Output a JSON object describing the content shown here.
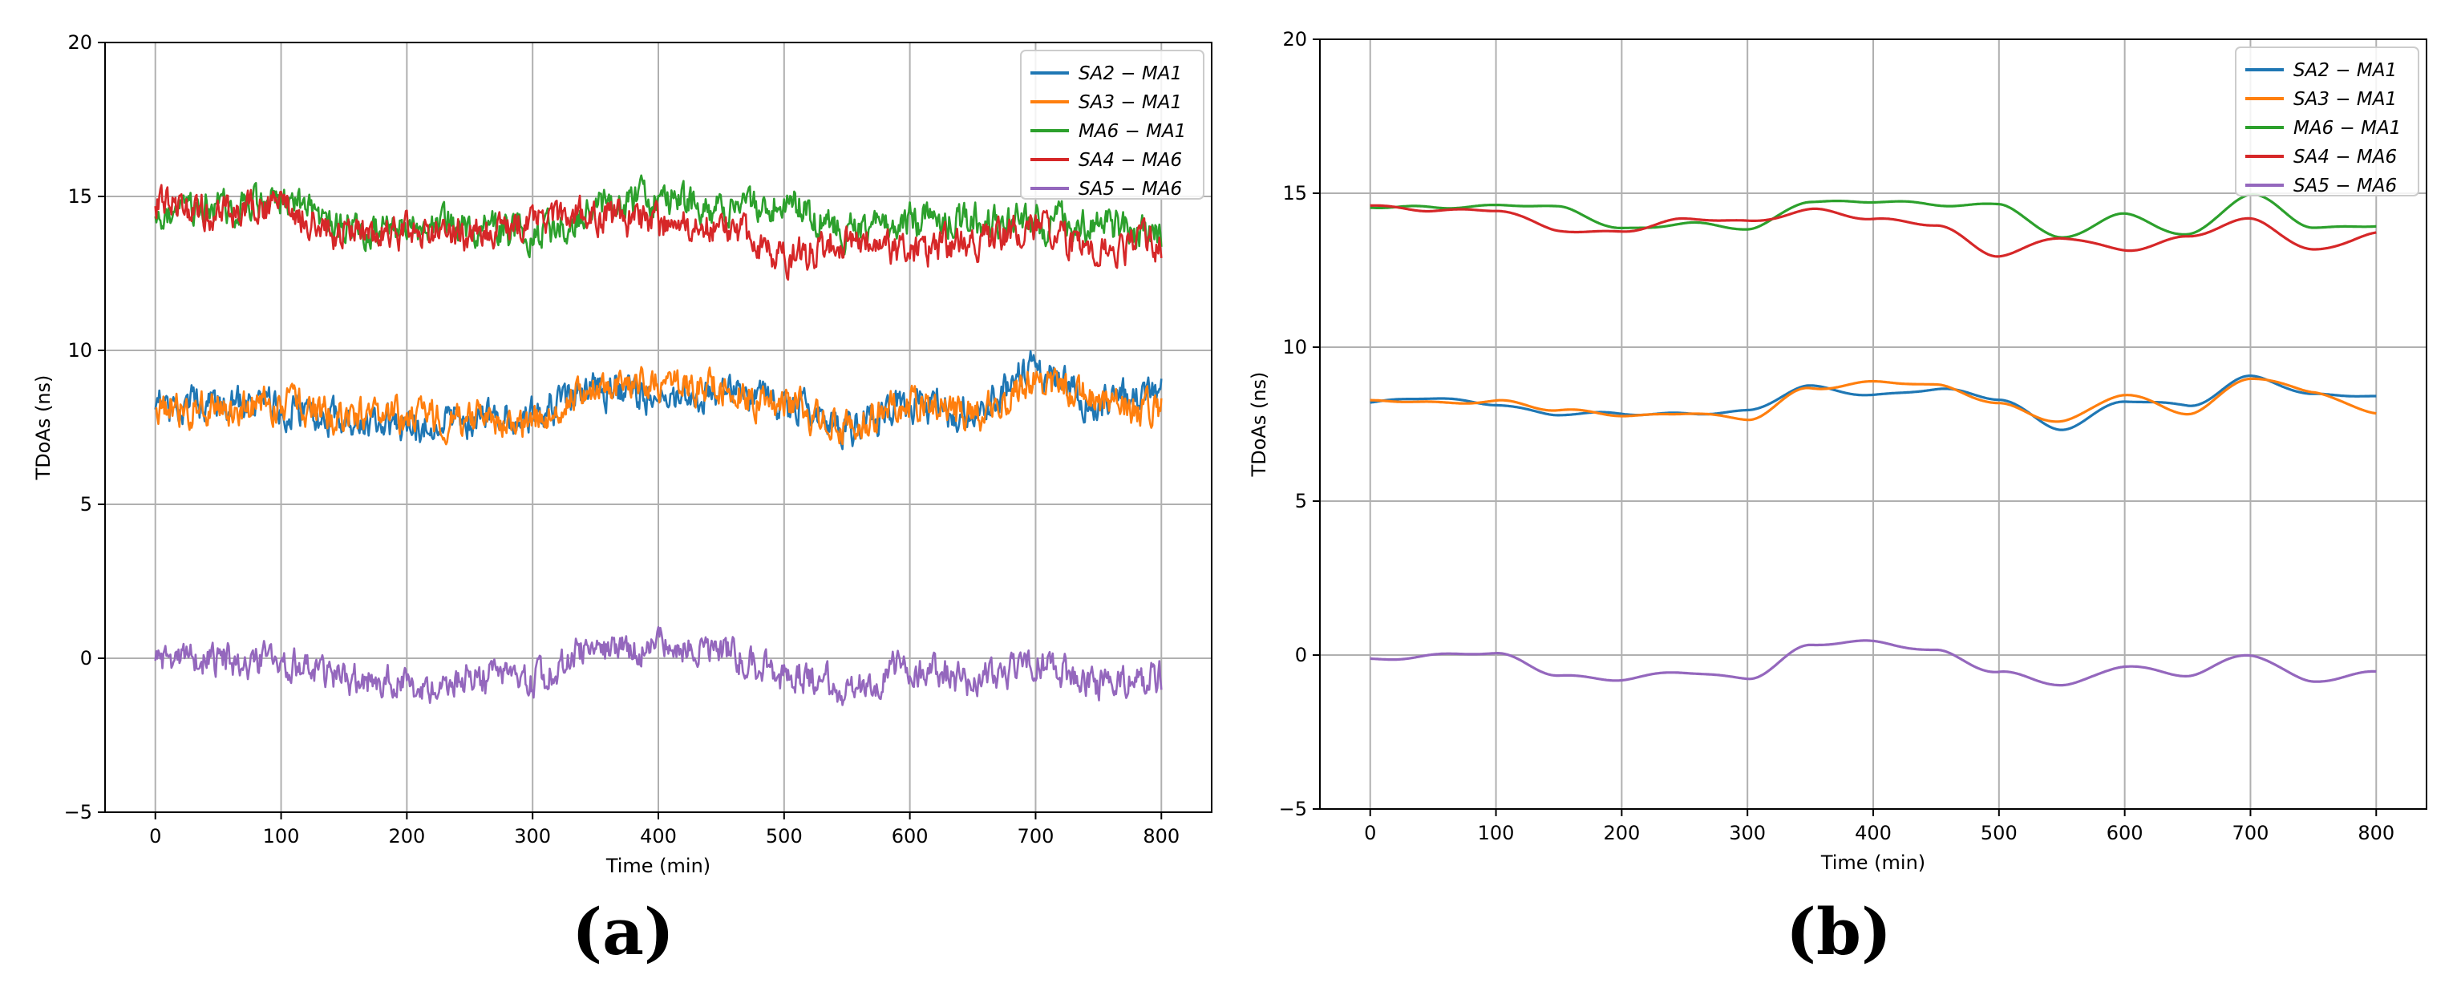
{
  "chart_data": [
    {
      "type": "line",
      "panel_label": "(a)",
      "xlabel": "Time (min)",
      "ylabel": "TDoAs (ns)",
      "xlim": [
        -40,
        840
      ],
      "ylim": [
        -5,
        20
      ],
      "xticks": [
        0,
        100,
        200,
        300,
        400,
        500,
        600,
        700,
        800
      ],
      "yticks": [
        -5,
        0,
        5,
        10,
        15,
        20
      ],
      "ytick_labels": [
        "−5",
        "0",
        "5",
        "10",
        "15",
        "20"
      ],
      "grid": true,
      "legend_position": "top-right",
      "smoothed": false,
      "x": [
        0,
        50,
        100,
        150,
        200,
        250,
        300,
        350,
        400,
        450,
        500,
        550,
        600,
        650,
        700,
        750,
        800
      ],
      "series": [
        {
          "name": "SA2 − MA1",
          "color": "#1f77b4",
          "values": [
            8.2,
            8.3,
            8.2,
            7.7,
            7.6,
            7.8,
            8.0,
            8.7,
            8.5,
            8.6,
            8.3,
            7.5,
            8.2,
            8.0,
            9.4,
            8.3,
            8.6
          ]
        },
        {
          "name": "SA3 − MA1",
          "color": "#ff7f0e",
          "values": [
            8.2,
            8.1,
            8.3,
            7.9,
            7.8,
            7.8,
            7.7,
            8.9,
            8.9,
            8.8,
            8.2,
            7.6,
            8.3,
            7.9,
            9.0,
            8.4,
            8.0
          ]
        },
        {
          "name": "MA6 − MA1",
          "color": "#2ca02c",
          "values": [
            14.4,
            14.7,
            14.8,
            14.0,
            13.9,
            14.0,
            13.7,
            14.6,
            14.9,
            14.6,
            14.8,
            13.9,
            14.2,
            14.2,
            14.1,
            14.0,
            13.8
          ]
        },
        {
          "name": "SA4 − MA6",
          "color": "#d62728",
          "values": [
            14.7,
            14.5,
            14.6,
            13.7,
            13.9,
            13.7,
            14.2,
            14.4,
            14.1,
            14.0,
            13.0,
            13.6,
            13.3,
            13.5,
            14.0,
            13.2,
            13.5
          ]
        },
        {
          "name": "SA5 − MA6",
          "color": "#9467bd",
          "values": [
            -0.1,
            0.0,
            -0.2,
            -0.6,
            -0.9,
            -0.6,
            -0.7,
            0.3,
            0.4,
            0.2,
            -0.6,
            -0.9,
            -0.3,
            -0.7,
            -0.2,
            -0.8,
            -0.6
          ]
        }
      ]
    },
    {
      "type": "line",
      "panel_label": "(b)",
      "xlabel": "Time (min)",
      "ylabel": "TDoAs (ns)",
      "xlim": [
        -40,
        840
      ],
      "ylim": [
        -5,
        20
      ],
      "xticks": [
        0,
        100,
        200,
        300,
        400,
        500,
        600,
        700,
        800
      ],
      "yticks": [
        -5,
        0,
        5,
        10,
        15,
        20
      ],
      "ytick_labels": [
        "−5",
        "0",
        "5",
        "10",
        "15",
        "20"
      ],
      "grid": true,
      "legend_position": "top-right",
      "smoothed": true,
      "x": [
        0,
        50,
        100,
        150,
        200,
        250,
        300,
        350,
        400,
        450,
        500,
        550,
        600,
        650,
        700,
        750,
        800
      ],
      "series": [
        {
          "name": "SA2 − MA1",
          "color": "#1f77b4",
          "values": [
            8.2,
            8.3,
            8.2,
            7.8,
            7.8,
            7.9,
            7.9,
            8.7,
            8.5,
            8.6,
            8.3,
            7.4,
            8.2,
            8.1,
            9.1,
            8.4,
            8.4
          ]
        },
        {
          "name": "SA3 − MA1",
          "color": "#ff7f0e",
          "values": [
            8.2,
            8.2,
            8.3,
            7.9,
            7.8,
            7.9,
            7.6,
            8.7,
            8.9,
            8.7,
            8.2,
            7.6,
            8.4,
            7.9,
            9.0,
            8.5,
            7.9
          ]
        },
        {
          "name": "MA6 − MA1",
          "color": "#2ca02c",
          "values": [
            14.5,
            14.6,
            14.6,
            14.5,
            13.9,
            14.0,
            13.8,
            14.8,
            14.7,
            14.6,
            14.7,
            13.5,
            14.3,
            13.7,
            14.9,
            13.9,
            14.0
          ]
        },
        {
          "name": "SA4 − MA6",
          "color": "#d62728",
          "values": [
            14.6,
            14.5,
            14.4,
            13.8,
            13.8,
            14.1,
            14.1,
            14.5,
            14.1,
            14.0,
            13.0,
            13.5,
            13.2,
            13.6,
            14.1,
            13.2,
            13.7
          ]
        },
        {
          "name": "SA5 − MA6",
          "color": "#9467bd",
          "values": [
            -0.1,
            0.0,
            0.0,
            -0.6,
            -0.8,
            -0.6,
            -0.7,
            0.3,
            0.4,
            0.2,
            -0.6,
            -1.0,
            -0.3,
            -0.7,
            0.0,
            -0.8,
            -0.6
          ]
        }
      ]
    }
  ]
}
